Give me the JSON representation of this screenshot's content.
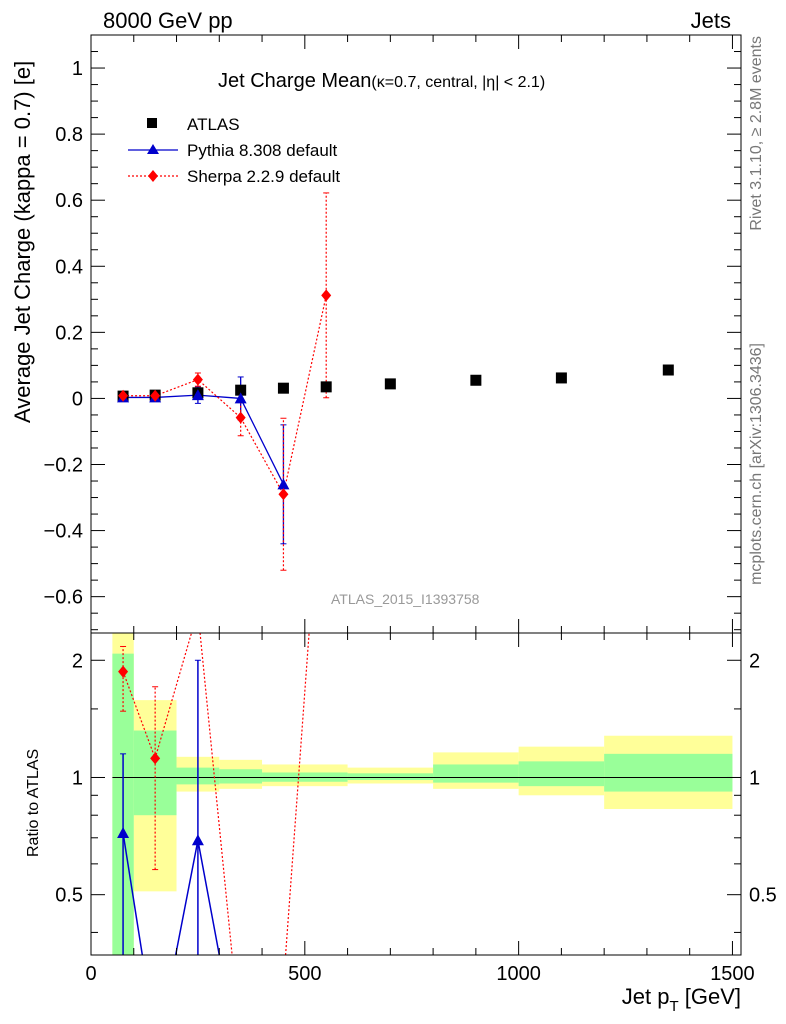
{
  "header": {
    "left": "8000 GeV pp",
    "right": "Jets"
  },
  "side_labels": {
    "rivet": "Rivet 3.1.10, ≥ 2.8M events",
    "mcplots": "mcplots.cern.ch [arXiv:1306.3436]"
  },
  "watermark": "ATLAS_2015_I1393758",
  "colors": {
    "atlas": "#000000",
    "pythia": "#0000cc",
    "sherpa": "#ff0000",
    "band_inner": "#99ff99",
    "band_outer": "#ffff99"
  },
  "chart_data": [
    {
      "type": "scatter",
      "title": "Jet Charge Mean",
      "subtitle": "(κ=0.7, central, |η| < 2.1)",
      "ylabel": "Average Jet Charge (kappa = 0.7) [e]",
      "xlim": [
        0,
        1520
      ],
      "ylim": [
        -0.71,
        1.1
      ],
      "yticks": [
        -0.6,
        -0.4,
        -0.2,
        0,
        0.2,
        0.4,
        0.6,
        0.8,
        1
      ],
      "ytick_labels": [
        "−0.6",
        "−0.4",
        "−0.2",
        "0",
        "0.2",
        "0.4",
        "0.6",
        "0.8",
        "1"
      ],
      "grid": false,
      "legend_position": "top-left",
      "series": [
        {
          "name": "ATLAS",
          "marker": "square",
          "color": "#000000",
          "x": [
            75,
            150,
            250,
            350,
            450,
            550,
            700,
            900,
            1100,
            1350
          ],
          "xerr": [
            25,
            50,
            50,
            50,
            50,
            50,
            100,
            100,
            100,
            150
          ],
          "y": [
            0.007,
            0.01,
            0.017,
            0.025,
            0.031,
            0.035,
            0.044,
            0.055,
            0.062,
            0.086
          ]
        },
        {
          "name": "Pythia 8.308 default",
          "marker": "triangle",
          "color": "#0000cc",
          "linestyle": "solid",
          "x": [
            75,
            150,
            250,
            350,
            450
          ],
          "y": [
            0.003,
            0.003,
            0.01,
            0.0,
            -0.26
          ],
          "yerr": [
            0.005,
            0.005,
            0.025,
            0.065,
            0.18
          ]
        },
        {
          "name": "Sherpa 2.2.9 default",
          "marker": "diamond",
          "color": "#ff0000",
          "linestyle": "dotted",
          "x": [
            75,
            150,
            250,
            350,
            450,
            550
          ],
          "y": [
            0.008,
            0.008,
            0.057,
            -0.058,
            -0.29,
            0.312
          ],
          "yerr": [
            0.005,
            0.005,
            0.02,
            0.055,
            0.23,
            0.31
          ]
        }
      ]
    },
    {
      "type": "scatter",
      "ylabel": "Ratio to ATLAS",
      "xlabel": "Jet p_T [GeV]",
      "xlim": [
        0,
        1520
      ],
      "ylim": [
        0.35,
        2.35
      ],
      "xticks": [
        0,
        500,
        1000,
        1500
      ],
      "yticks": [
        0.5,
        1,
        2
      ],
      "ytick_labels": [
        "0.5",
        "1",
        "2"
      ],
      "reference_line": 1,
      "bands": [
        {
          "x": [
            50,
            100
          ],
          "inner": [
            0.35,
            2.08
          ],
          "outer": [
            0.35,
            2.35
          ]
        },
        {
          "x": [
            100,
            200
          ],
          "inner": [
            0.8,
            1.32
          ],
          "outer": [
            0.51,
            1.58
          ]
        },
        {
          "x": [
            200,
            300
          ],
          "inner": [
            0.96,
            1.06
          ],
          "outer": [
            0.92,
            1.13
          ]
        },
        {
          "x": [
            300,
            400
          ],
          "inner": [
            0.965,
            1.05
          ],
          "outer": [
            0.935,
            1.11
          ]
        },
        {
          "x": [
            400,
            600
          ],
          "inner": [
            0.975,
            1.03
          ],
          "outer": [
            0.95,
            1.08
          ]
        },
        {
          "x": [
            600,
            800
          ],
          "inner": [
            0.985,
            1.025
          ],
          "outer": [
            0.965,
            1.06
          ]
        },
        {
          "x": [
            800,
            1000
          ],
          "inner": [
            0.97,
            1.08
          ],
          "outer": [
            0.935,
            1.16
          ]
        },
        {
          "x": [
            1000,
            1200
          ],
          "inner": [
            0.95,
            1.1
          ],
          "outer": [
            0.9,
            1.2
          ]
        },
        {
          "x": [
            1200,
            1500
          ],
          "inner": [
            0.92,
            1.15
          ],
          "outer": [
            0.83,
            1.28
          ]
        }
      ],
      "series": [
        {
          "name": "Pythia 8.308 default",
          "color": "#0000cc",
          "marker": "triangle",
          "points": [
            {
              "x": 75,
              "y": 0.72,
              "ylo": 0.35,
              "yhi": 1.15
            },
            {
              "x": 250,
              "y": 0.69,
              "ylo": 0.35,
              "yhi": 2.0
            }
          ],
          "lines": [
            [
              [
                75,
                0.72
              ],
              [
                120,
                0.35
              ]
            ],
            [
              [
                198,
                0.35
              ],
              [
                250,
                0.69
              ],
              [
                300,
                0.35
              ]
            ]
          ]
        },
        {
          "name": "Sherpa 2.2.9 default",
          "color": "#ff0000",
          "marker": "diamond",
          "points": [
            {
              "x": 75,
              "y": 1.87,
              "ylo": 1.48,
              "yhi": 2.17
            },
            {
              "x": 150,
              "y": 1.12,
              "ylo": 0.58,
              "yhi": 1.71
            }
          ],
          "lines": [
            [
              [
                75,
                1.87
              ],
              [
                150,
                1.12
              ],
              [
                235,
                2.35
              ]
            ],
            [
              [
                255,
                2.35
              ],
              [
                330,
                0.35
              ]
            ],
            [
              [
                455,
                0.35
              ],
              [
                510,
                2.35
              ]
            ]
          ]
        }
      ]
    }
  ]
}
